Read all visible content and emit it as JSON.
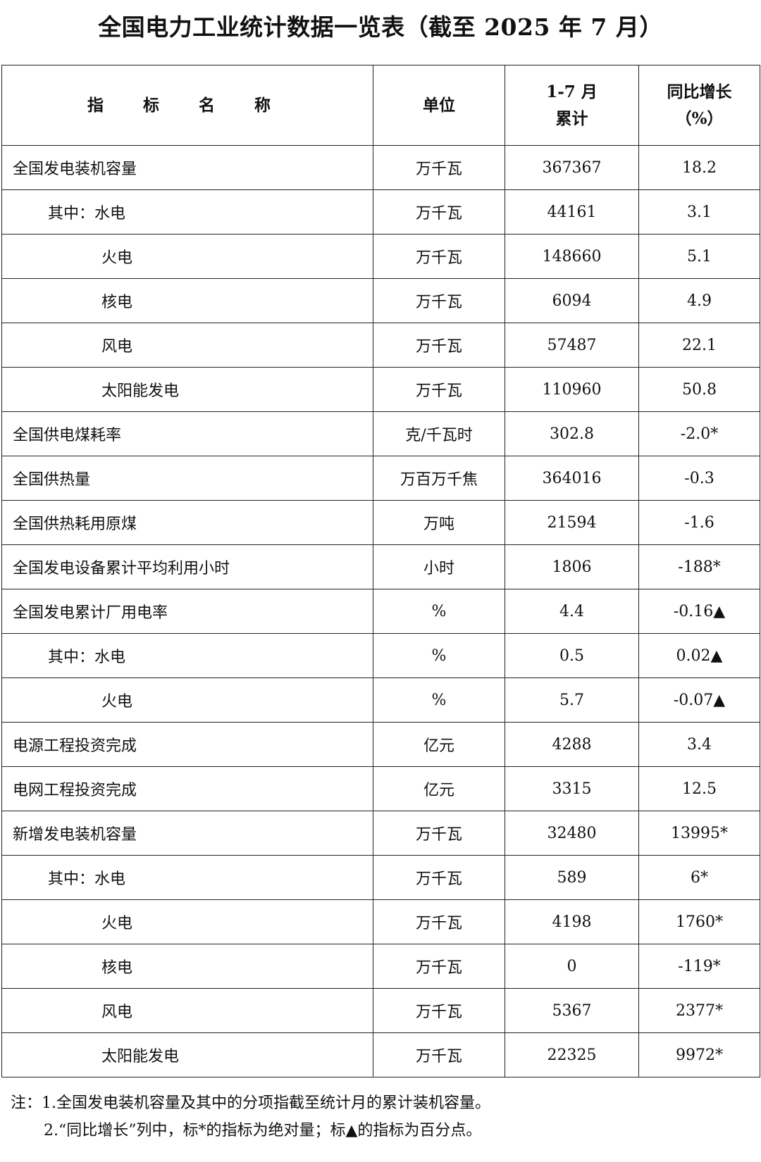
{
  "title": "全国电力工业统计数据一览表（截至 2025 年 7 月）",
  "table": {
    "headers": {
      "name": "指 标 名 称",
      "unit": "单位",
      "cumulative_line1": "1-7 月",
      "cumulative_line2": "累计",
      "growth_line1": "同比增长",
      "growth_line2": "（%）"
    },
    "rows": [
      {
        "name": "全国发电装机容量",
        "level": 0,
        "unit": "万千瓦",
        "value": "367367",
        "growth": "18.2"
      },
      {
        "name": "其中：水电",
        "level": 1,
        "unit": "万千瓦",
        "value": "44161",
        "growth": "3.1"
      },
      {
        "name": "火电",
        "level": 2,
        "unit": "万千瓦",
        "value": "148660",
        "growth": "5.1"
      },
      {
        "name": "核电",
        "level": 2,
        "unit": "万千瓦",
        "value": "6094",
        "growth": "4.9"
      },
      {
        "name": "风电",
        "level": 2,
        "unit": "万千瓦",
        "value": "57487",
        "growth": "22.1"
      },
      {
        "name": "太阳能发电",
        "level": 2,
        "unit": "万千瓦",
        "value": "110960",
        "growth": "50.8"
      },
      {
        "name": "全国供电煤耗率",
        "level": 0,
        "unit": "克/千瓦时",
        "value": "302.8",
        "growth": "-2.0*"
      },
      {
        "name": "全国供热量",
        "level": 0,
        "unit": "万百万千焦",
        "value": "364016",
        "growth": "-0.3"
      },
      {
        "name": "全国供热耗用原煤",
        "level": 0,
        "unit": "万吨",
        "value": "21594",
        "growth": "-1.6"
      },
      {
        "name": "全国发电设备累计平均利用小时",
        "level": 0,
        "unit": "小时",
        "value": "1806",
        "growth": "-188*"
      },
      {
        "name": "全国发电累计厂用电率",
        "level": 0,
        "unit": "%",
        "value": "4.4",
        "growth": "-0.16▲"
      },
      {
        "name": "其中：水电",
        "level": 1,
        "unit": "%",
        "value": "0.5",
        "growth": "0.02▲"
      },
      {
        "name": "火电",
        "level": 2,
        "unit": "%",
        "value": "5.7",
        "growth": "-0.07▲"
      },
      {
        "name": "电源工程投资完成",
        "level": 0,
        "unit": "亿元",
        "value": "4288",
        "growth": "3.4"
      },
      {
        "name": "电网工程投资完成",
        "level": 0,
        "unit": "亿元",
        "value": "3315",
        "growth": "12.5"
      },
      {
        "name": "新增发电装机容量",
        "level": 0,
        "unit": "万千瓦",
        "value": "32480",
        "growth": "13995*"
      },
      {
        "name": "其中：水电",
        "level": 1,
        "unit": "万千瓦",
        "value": "589",
        "growth": "6*"
      },
      {
        "name": "火电",
        "level": 2,
        "unit": "万千瓦",
        "value": "4198",
        "growth": "1760*"
      },
      {
        "name": "核电",
        "level": 2,
        "unit": "万千瓦",
        "value": "0",
        "growth": "-119*"
      },
      {
        "name": "风电",
        "level": 2,
        "unit": "万千瓦",
        "value": "5367",
        "growth": "2377*"
      },
      {
        "name": "太阳能发电",
        "level": 2,
        "unit": "万千瓦",
        "value": "22325",
        "growth": "9972*"
      }
    ]
  },
  "notes": [
    "注：1.全国发电装机容量及其中的分项指截至统计月的累计装机容量。",
    "2.“同比增长”列中，标*的指标为绝对量；标▲的指标为百分点。"
  ]
}
